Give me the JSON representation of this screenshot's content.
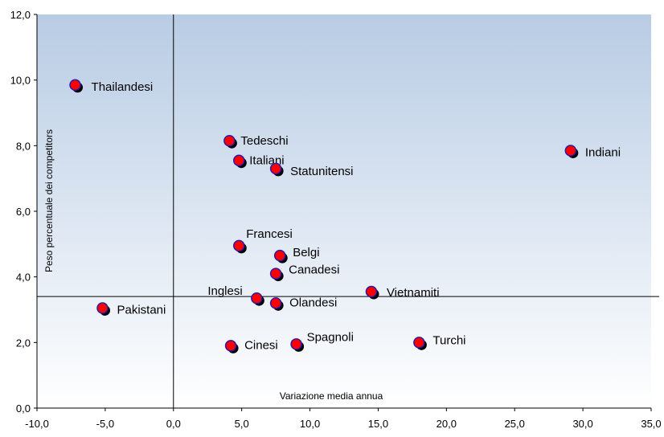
{
  "chart_data": {
    "type": "scatter",
    "title": "",
    "xlabel": "Variazione media annua",
    "ylabel": "Peso percentuale dei competitors",
    "xlim": [
      -10,
      35
    ],
    "ylim": [
      0,
      12
    ],
    "x_ticks": [
      "-10,0",
      "-5,0",
      "0,0",
      "5,0",
      "10,0",
      "15,0",
      "20,0",
      "25,0",
      "30,0",
      "35,0"
    ],
    "y_ticks": [
      "0,0",
      "2,0",
      "4,0",
      "6,0",
      "8,0",
      "10,0",
      "12,0"
    ],
    "reference_lines": {
      "x": 0,
      "y": 3.4
    },
    "grid": false,
    "background": {
      "top": "#b8cce4",
      "bottom": "#ffffff"
    },
    "marker": {
      "fill": "#ff0000",
      "stroke": "#2a1aa8",
      "shadow": "#000000"
    },
    "points": [
      {
        "label": "Thailandesi",
        "x": -7.2,
        "y": 9.85
      },
      {
        "label": "Tedeschi",
        "x": 4.1,
        "y": 8.15
      },
      {
        "label": "Italiani",
        "x": 4.8,
        "y": 7.55
      },
      {
        "label": "Statunitensi",
        "x": 7.5,
        "y": 7.3
      },
      {
        "label": "Indiani",
        "x": 29.1,
        "y": 7.85
      },
      {
        "label": "Francesi",
        "x": 4.8,
        "y": 4.95
      },
      {
        "label": "Belgi",
        "x": 7.8,
        "y": 4.65
      },
      {
        "label": "Canadesi",
        "x": 7.5,
        "y": 4.1
      },
      {
        "label": "Inglesi",
        "x": 6.1,
        "y": 3.35
      },
      {
        "label": "Olandesi",
        "x": 7.5,
        "y": 3.2
      },
      {
        "label": "Vietnamiti",
        "x": 14.5,
        "y": 3.55
      },
      {
        "label": "Pakistani",
        "x": -5.2,
        "y": 3.05
      },
      {
        "label": "Cinesi",
        "x": 4.2,
        "y": 1.9
      },
      {
        "label": "Spagnoli",
        "x": 9.0,
        "y": 1.95
      },
      {
        "label": "Turchi",
        "x": 18.0,
        "y": 2.0
      }
    ]
  }
}
